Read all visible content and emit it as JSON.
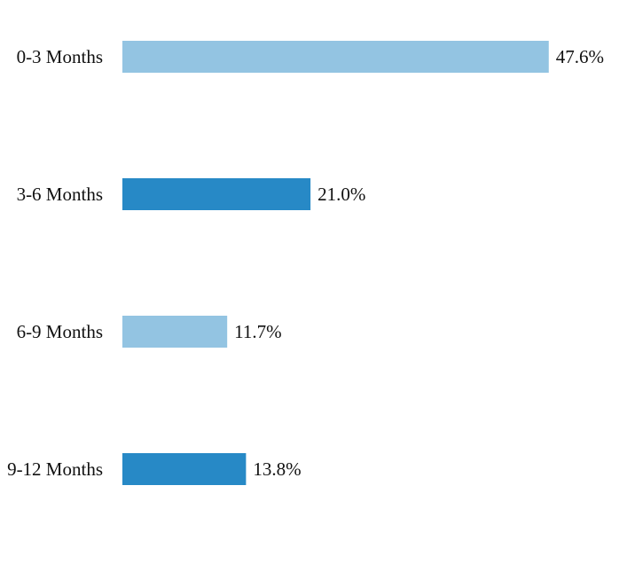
{
  "chart_data": {
    "type": "bar",
    "orientation": "horizontal",
    "categories": [
      "0-3 Months",
      "3-6 Months",
      "6-9 Months",
      "9-12 Months"
    ],
    "values": [
      47.6,
      21.0,
      11.7,
      13.8
    ],
    "value_labels": [
      "47.6%",
      "21.0%",
      "11.7%",
      "13.8%"
    ],
    "unit": "%",
    "colors": [
      "#93c4e2",
      "#2789c6",
      "#93c4e2",
      "#2789c6"
    ],
    "title": "",
    "xlabel": "",
    "ylabel": "",
    "grid": false,
    "legend": "none"
  }
}
